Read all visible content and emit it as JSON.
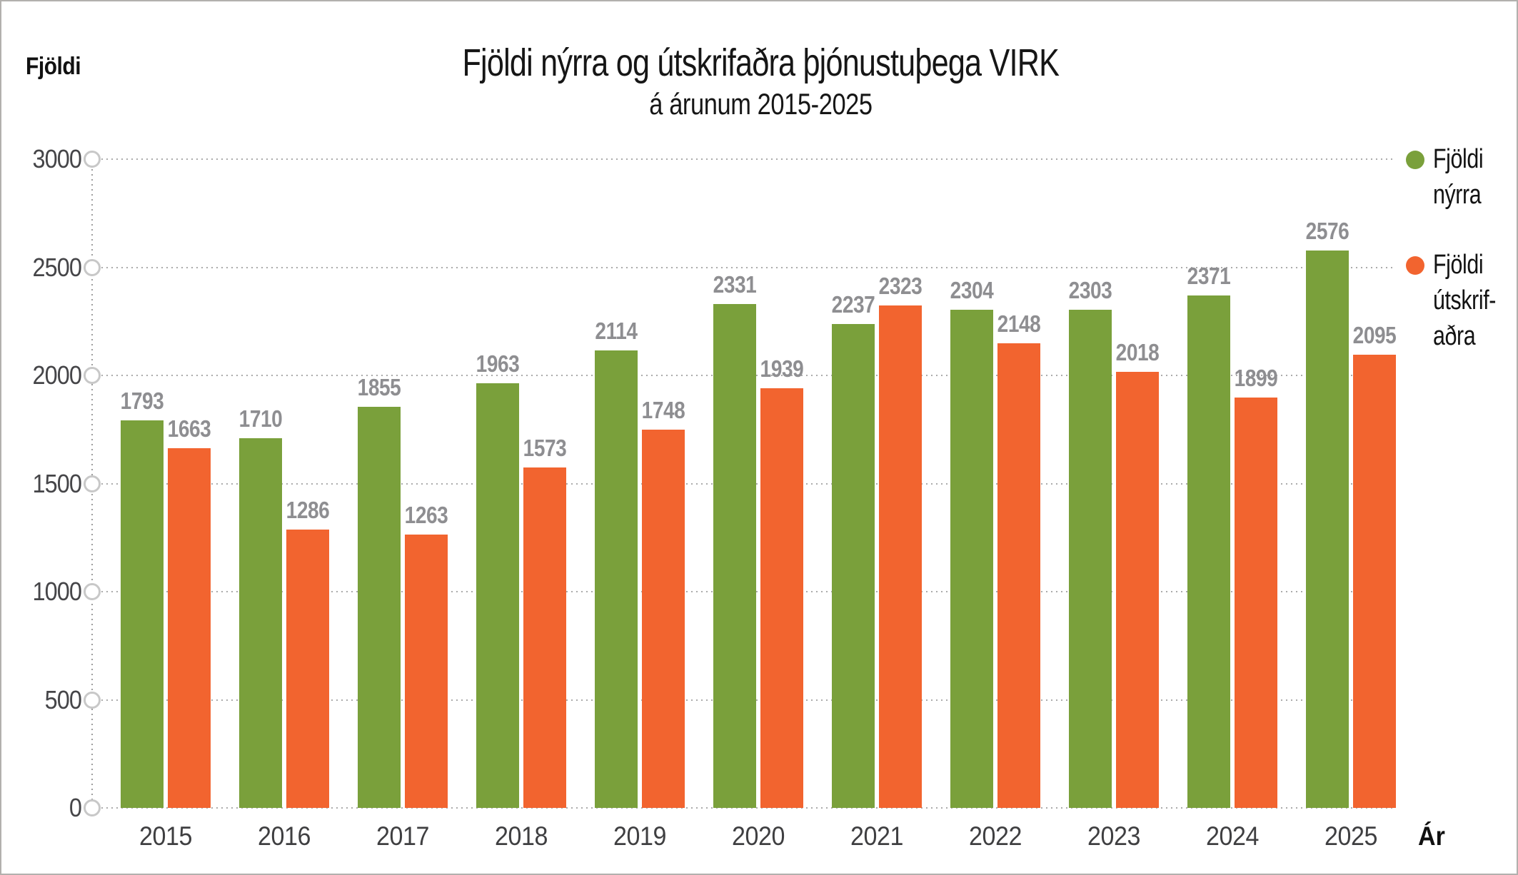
{
  "header": {
    "y_axis_title": "Fjöldi",
    "title": "Fjöldi nýrra og útskrifaðra þjónustuþega VIRK",
    "subtitle": "á árunum 2015-2025"
  },
  "axis": {
    "x_title": "Ár"
  },
  "legend": {
    "items": [
      {
        "label": "Fjöldi\nnýrra",
        "color": "#7aa03b"
      },
      {
        "label": "Fjöldi\nútskrif-\naðra",
        "color": "#f2642f"
      }
    ]
  },
  "chart_data": {
    "type": "bar",
    "title": "Fjöldi nýrra og útskrifaðra þjónustuþega VIRK",
    "subtitle": "á árunum 2015-2025",
    "xlabel": "Ár",
    "ylabel": "Fjöldi",
    "categories": [
      "2015",
      "2016",
      "2017",
      "2018",
      "2019",
      "2020",
      "2021",
      "2022",
      "2023",
      "2024",
      "2025"
    ],
    "series": [
      {
        "name": "Fjöldi nýrra",
        "key": "fjoldi-nyrra",
        "color": "#7aa03b",
        "values": [
          1793,
          1710,
          1855,
          1963,
          2114,
          2331,
          2237,
          2304,
          2303,
          2371,
          2576
        ]
      },
      {
        "name": "Fjöldi útskrifaðra",
        "key": "fjoldi-utskrifadra",
        "color": "#f2642f",
        "values": [
          1663,
          1286,
          1263,
          1573,
          1748,
          1939,
          2323,
          2148,
          2018,
          1899,
          2095
        ]
      }
    ],
    "ylim": [
      0,
      3000
    ],
    "yticks": [
      0,
      500,
      1000,
      1500,
      2000,
      2500,
      3000
    ],
    "grid": "dotted-horizontal",
    "tick_marker": "open-circle",
    "value_labels": "above-bars",
    "legend_position": "right"
  },
  "colors": {
    "bar_green": "#7aa03b",
    "bar_orange": "#f2642f",
    "value_label": "#8e8e91",
    "tick_label": "#454548",
    "gridline": "#ababab",
    "frame_border": "#b2b0ad"
  }
}
